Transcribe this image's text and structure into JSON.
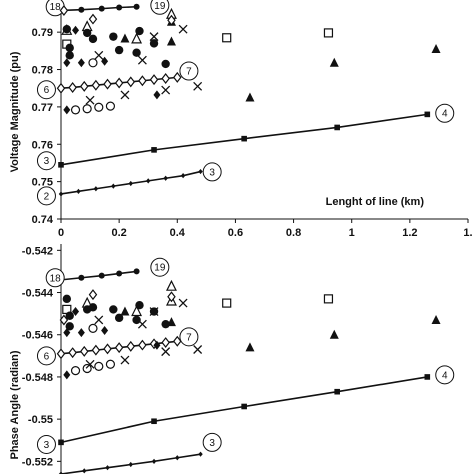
{
  "chart_data": [
    {
      "type": "scatter",
      "ylabel": "Voltage Magnitude (pu)",
      "xlabel": "Lenght of line (km)",
      "x_ticks": [
        "0",
        "0.2",
        "0.4",
        "0.6",
        "0.8",
        "1",
        "1.2",
        "1."
      ],
      "y_ticks": [
        "0.79",
        "0.78",
        "0.77",
        "0.76",
        "0.75",
        "0.74"
      ],
      "xlim": [
        0,
        1.4
      ],
      "ylim": [
        0.74,
        0.797
      ],
      "series": [
        {
          "tag": "18",
          "marker": "dot",
          "line": true,
          "tag_at": [
            -0.02,
            0.7968
          ],
          "points": [
            [
              0,
              0.7958
            ],
            [
              0.07,
              0.796
            ],
            [
              0.14,
              0.7963
            ],
            [
              0.2,
              0.7966
            ],
            [
              0.26,
              0.7968
            ]
          ]
        },
        {
          "tag": "19",
          "tag_at": [
            0.34,
            0.7972
          ]
        },
        {
          "tag": "6",
          "marker": "diamond-open",
          "line": true,
          "tag_at": [
            -0.05,
            0.7746
          ],
          "points": [
            [
              0,
              0.775
            ],
            [
              0.04,
              0.7752
            ],
            [
              0.08,
              0.7755
            ],
            [
              0.12,
              0.7758
            ],
            [
              0.16,
              0.7761
            ],
            [
              0.2,
              0.7764
            ],
            [
              0.24,
              0.7767
            ],
            [
              0.28,
              0.777
            ],
            [
              0.32,
              0.7773
            ],
            [
              0.36,
              0.7776
            ],
            [
              0.4,
              0.7779
            ]
          ]
        },
        {
          "tag": "7",
          "tag_at": [
            0.44,
            0.7796
          ]
        },
        {
          "tag": "3",
          "marker": "square",
          "line": true,
          "tag_at": [
            -0.05,
            0.7556
          ],
          "points": [
            [
              0,
              0.7545
            ],
            [
              0.32,
              0.7585
            ],
            [
              0.63,
              0.7615
            ],
            [
              0.95,
              0.7645
            ],
            [
              1.26,
              0.768
            ]
          ]
        },
        {
          "tag": "4",
          "tag_at": [
            1.32,
            0.7683
          ]
        },
        {
          "tag": "2",
          "marker": "plus",
          "line": true,
          "tag_at": [
            -0.05,
            0.7462
          ],
          "points": [
            [
              0,
              0.7467
            ],
            [
              0.06,
              0.7474
            ],
            [
              0.12,
              0.7481
            ],
            [
              0.18,
              0.7488
            ],
            [
              0.24,
              0.7495
            ],
            [
              0.3,
              0.7502
            ],
            [
              0.36,
              0.7509
            ],
            [
              0.42,
              0.7516
            ],
            [
              0.48,
              0.7527
            ]
          ]
        },
        {
          "tag": "3",
          "tag_at": [
            0.52,
            0.7526
          ]
        },
        {
          "marker": "triangle",
          "points": [
            [
              0.38,
              0.7928
            ],
            [
              0.65,
              0.7725
            ],
            [
              0.94,
              0.7818
            ],
            [
              1.29,
              0.7855
            ],
            [
              0.38,
              0.7875
            ],
            [
              0.22,
              0.7883
            ]
          ]
        },
        {
          "marker": "triangle-open",
          "points": [
            [
              0.38,
              0.7948
            ],
            [
              0.26,
              0.7882
            ],
            [
              0.09,
              0.7915
            ],
            [
              0.02,
              0.7905
            ]
          ]
        },
        {
          "marker": "square-open",
          "points": [
            [
              0.57,
              0.7885
            ],
            [
              0.92,
              0.7898
            ],
            [
              0.02,
              0.7868
            ]
          ]
        },
        {
          "marker": "circle",
          "points": [
            [
              0.02,
              0.7908
            ],
            [
              0.09,
              0.7898
            ],
            [
              0.18,
              0.7888
            ],
            [
              0.27,
              0.7903
            ],
            [
              0.03,
              0.7838
            ]
          ]
        },
        {
          "marker": "circle-open",
          "points": [
            [
              0.05,
              0.7692
            ],
            [
              0.09,
              0.7695
            ],
            [
              0.13,
              0.7699
            ],
            [
              0.17,
              0.7702
            ],
            [
              0.11,
              0.7818
            ]
          ]
        },
        {
          "marker": "x",
          "points": [
            [
              0.32,
              0.7888
            ],
            [
              0.13,
              0.7838
            ],
            [
              0.28,
              0.7825
            ],
            [
              0.1,
              0.7718
            ],
            [
              0.22,
              0.7732
            ],
            [
              0.36,
              0.7745
            ],
            [
              0.47,
              0.7755
            ],
            [
              0.42,
              0.7908
            ]
          ]
        },
        {
          "marker": "diamond-solid",
          "points": [
            [
              0.05,
              0.7905
            ],
            [
              0.02,
              0.7818
            ],
            [
              0.07,
              0.7818
            ],
            [
              0.15,
              0.7822
            ],
            [
              0.33,
              0.7732
            ],
            [
              0.02,
              0.7692
            ]
          ]
        },
        {
          "marker": "diamond-open2",
          "points": [
            [
              0.11,
              0.7935
            ],
            [
              0.38,
              0.7932
            ],
            [
              0.01,
              0.7958
            ]
          ]
        },
        {
          "marker": "bullet",
          "points": [
            [
              0.11,
              0.7882
            ],
            [
              0.2,
              0.7852
            ],
            [
              0.32,
              0.787
            ],
            [
              0.36,
              0.7815
            ],
            [
              0.03,
              0.7858
            ],
            [
              0.26,
              0.7845
            ]
          ]
        }
      ]
    },
    {
      "type": "scatter",
      "ylabel": "Phase Angle (radian)",
      "x_ticks": [],
      "y_ticks": [
        "-0.542",
        "-0.544",
        "-0.546",
        "-0.548",
        "-0.55",
        "-0.552"
      ],
      "xlim": [
        0,
        1.4
      ],
      "ylim": [
        -0.5526,
        -0.5417
      ],
      "series": [
        {
          "tag": "18",
          "marker": "dot",
          "line": true,
          "tag_at": [
            -0.02,
            -0.5433
          ],
          "points": [
            [
              0,
              -0.5434
            ],
            [
              0.07,
              -0.5433
            ],
            [
              0.14,
              -0.5432
            ],
            [
              0.2,
              -0.5431
            ],
            [
              0.26,
              -0.543
            ]
          ]
        },
        {
          "tag": "19",
          "tag_at": [
            0.34,
            -0.5428
          ]
        },
        {
          "tag": "6",
          "marker": "diamond-open",
          "line": true,
          "tag_at": [
            -0.05,
            -0.547
          ],
          "points": [
            [
              0,
              -0.5469
            ],
            [
              0.04,
              -0.54685
            ],
            [
              0.08,
              -0.54679
            ],
            [
              0.12,
              -0.54673
            ],
            [
              0.16,
              -0.54667
            ],
            [
              0.2,
              -0.54661
            ],
            [
              0.24,
              -0.54655
            ],
            [
              0.28,
              -0.54649
            ],
            [
              0.32,
              -0.54643
            ],
            [
              0.36,
              -0.54637
            ],
            [
              0.4,
              -0.54631
            ]
          ]
        },
        {
          "tag": "7",
          "tag_at": [
            0.44,
            -0.5461
          ]
        },
        {
          "tag": "3",
          "marker": "square",
          "line": true,
          "tag_at": [
            -0.05,
            -0.5512
          ],
          "points": [
            [
              0,
              -0.5511
            ],
            [
              0.32,
              -0.5501
            ],
            [
              0.63,
              -0.5494
            ],
            [
              0.95,
              -0.5487
            ],
            [
              1.26,
              -0.548
            ]
          ]
        },
        {
          "tag": "4",
          "tag_at": [
            1.32,
            -0.5479
          ]
        },
        {
          "tag": "3",
          "tag_at": [
            0.52,
            -0.5511
          ]
        },
        {
          "marker": "plus",
          "line": true,
          "points": [
            [
              0,
              -0.5526
            ],
            [
              0.08,
              -0.55245
            ],
            [
              0.16,
              -0.5523
            ],
            [
              0.24,
              -0.55215
            ],
            [
              0.32,
              -0.552
            ],
            [
              0.4,
              -0.55183
            ],
            [
              0.48,
              -0.55166
            ]
          ]
        },
        {
          "marker": "triangle",
          "points": [
            [
              0.38,
              -0.5437
            ],
            [
              0.65,
              -0.5466
            ],
            [
              0.94,
              -0.546
            ],
            [
              1.29,
              -0.5453
            ],
            [
              0.38,
              -0.5454
            ],
            [
              0.22,
              -0.5449
            ]
          ]
        },
        {
          "marker": "triangle-open",
          "points": [
            [
              0.38,
              -0.5437
            ],
            [
              0.38,
              -0.5444
            ],
            [
              0.26,
              -0.5449
            ],
            [
              0.09,
              -0.5445
            ]
          ]
        },
        {
          "marker": "square-open",
          "points": [
            [
              0.57,
              -0.5445
            ],
            [
              0.92,
              -0.5443
            ],
            [
              0.02,
              -0.5448
            ]
          ]
        },
        {
          "marker": "circle",
          "points": [
            [
              0.02,
              -0.5443
            ],
            [
              0.09,
              -0.5448
            ],
            [
              0.18,
              -0.5448
            ],
            [
              0.27,
              -0.5446
            ],
            [
              0.03,
              -0.5456
            ]
          ]
        },
        {
          "marker": "circle-open",
          "points": [
            [
              0.05,
              -0.5477
            ],
            [
              0.09,
              -0.5476
            ],
            [
              0.13,
              -0.5475
            ],
            [
              0.17,
              -0.5474
            ],
            [
              0.11,
              -0.5457
            ]
          ]
        },
        {
          "marker": "x",
          "points": [
            [
              0.32,
              -0.5449
            ],
            [
              0.13,
              -0.5453
            ],
            [
              0.28,
              -0.5455
            ],
            [
              0.1,
              -0.5474
            ],
            [
              0.22,
              -0.5472
            ],
            [
              0.36,
              -0.5468
            ],
            [
              0.47,
              -0.5467
            ],
            [
              0.42,
              -0.5445
            ]
          ]
        },
        {
          "marker": "diamond-solid",
          "points": [
            [
              0.05,
              -0.5449
            ],
            [
              0.02,
              -0.5459
            ],
            [
              0.07,
              -0.5459
            ],
            [
              0.15,
              -0.5458
            ],
            [
              0.33,
              -0.5465
            ],
            [
              0.02,
              -0.5479
            ]
          ]
        },
        {
          "marker": "diamond-open2",
          "points": [
            [
              0.11,
              -0.5441
            ],
            [
              0.38,
              -0.5442
            ],
            [
              0.01,
              -0.5453
            ]
          ]
        },
        {
          "marker": "bullet",
          "points": [
            [
              0.11,
              -0.5447
            ],
            [
              0.2,
              -0.5452
            ],
            [
              0.32,
              -0.5449
            ],
            [
              0.36,
              -0.5455
            ],
            [
              0.03,
              -0.5451
            ],
            [
              0.26,
              -0.5453
            ]
          ]
        }
      ]
    }
  ]
}
